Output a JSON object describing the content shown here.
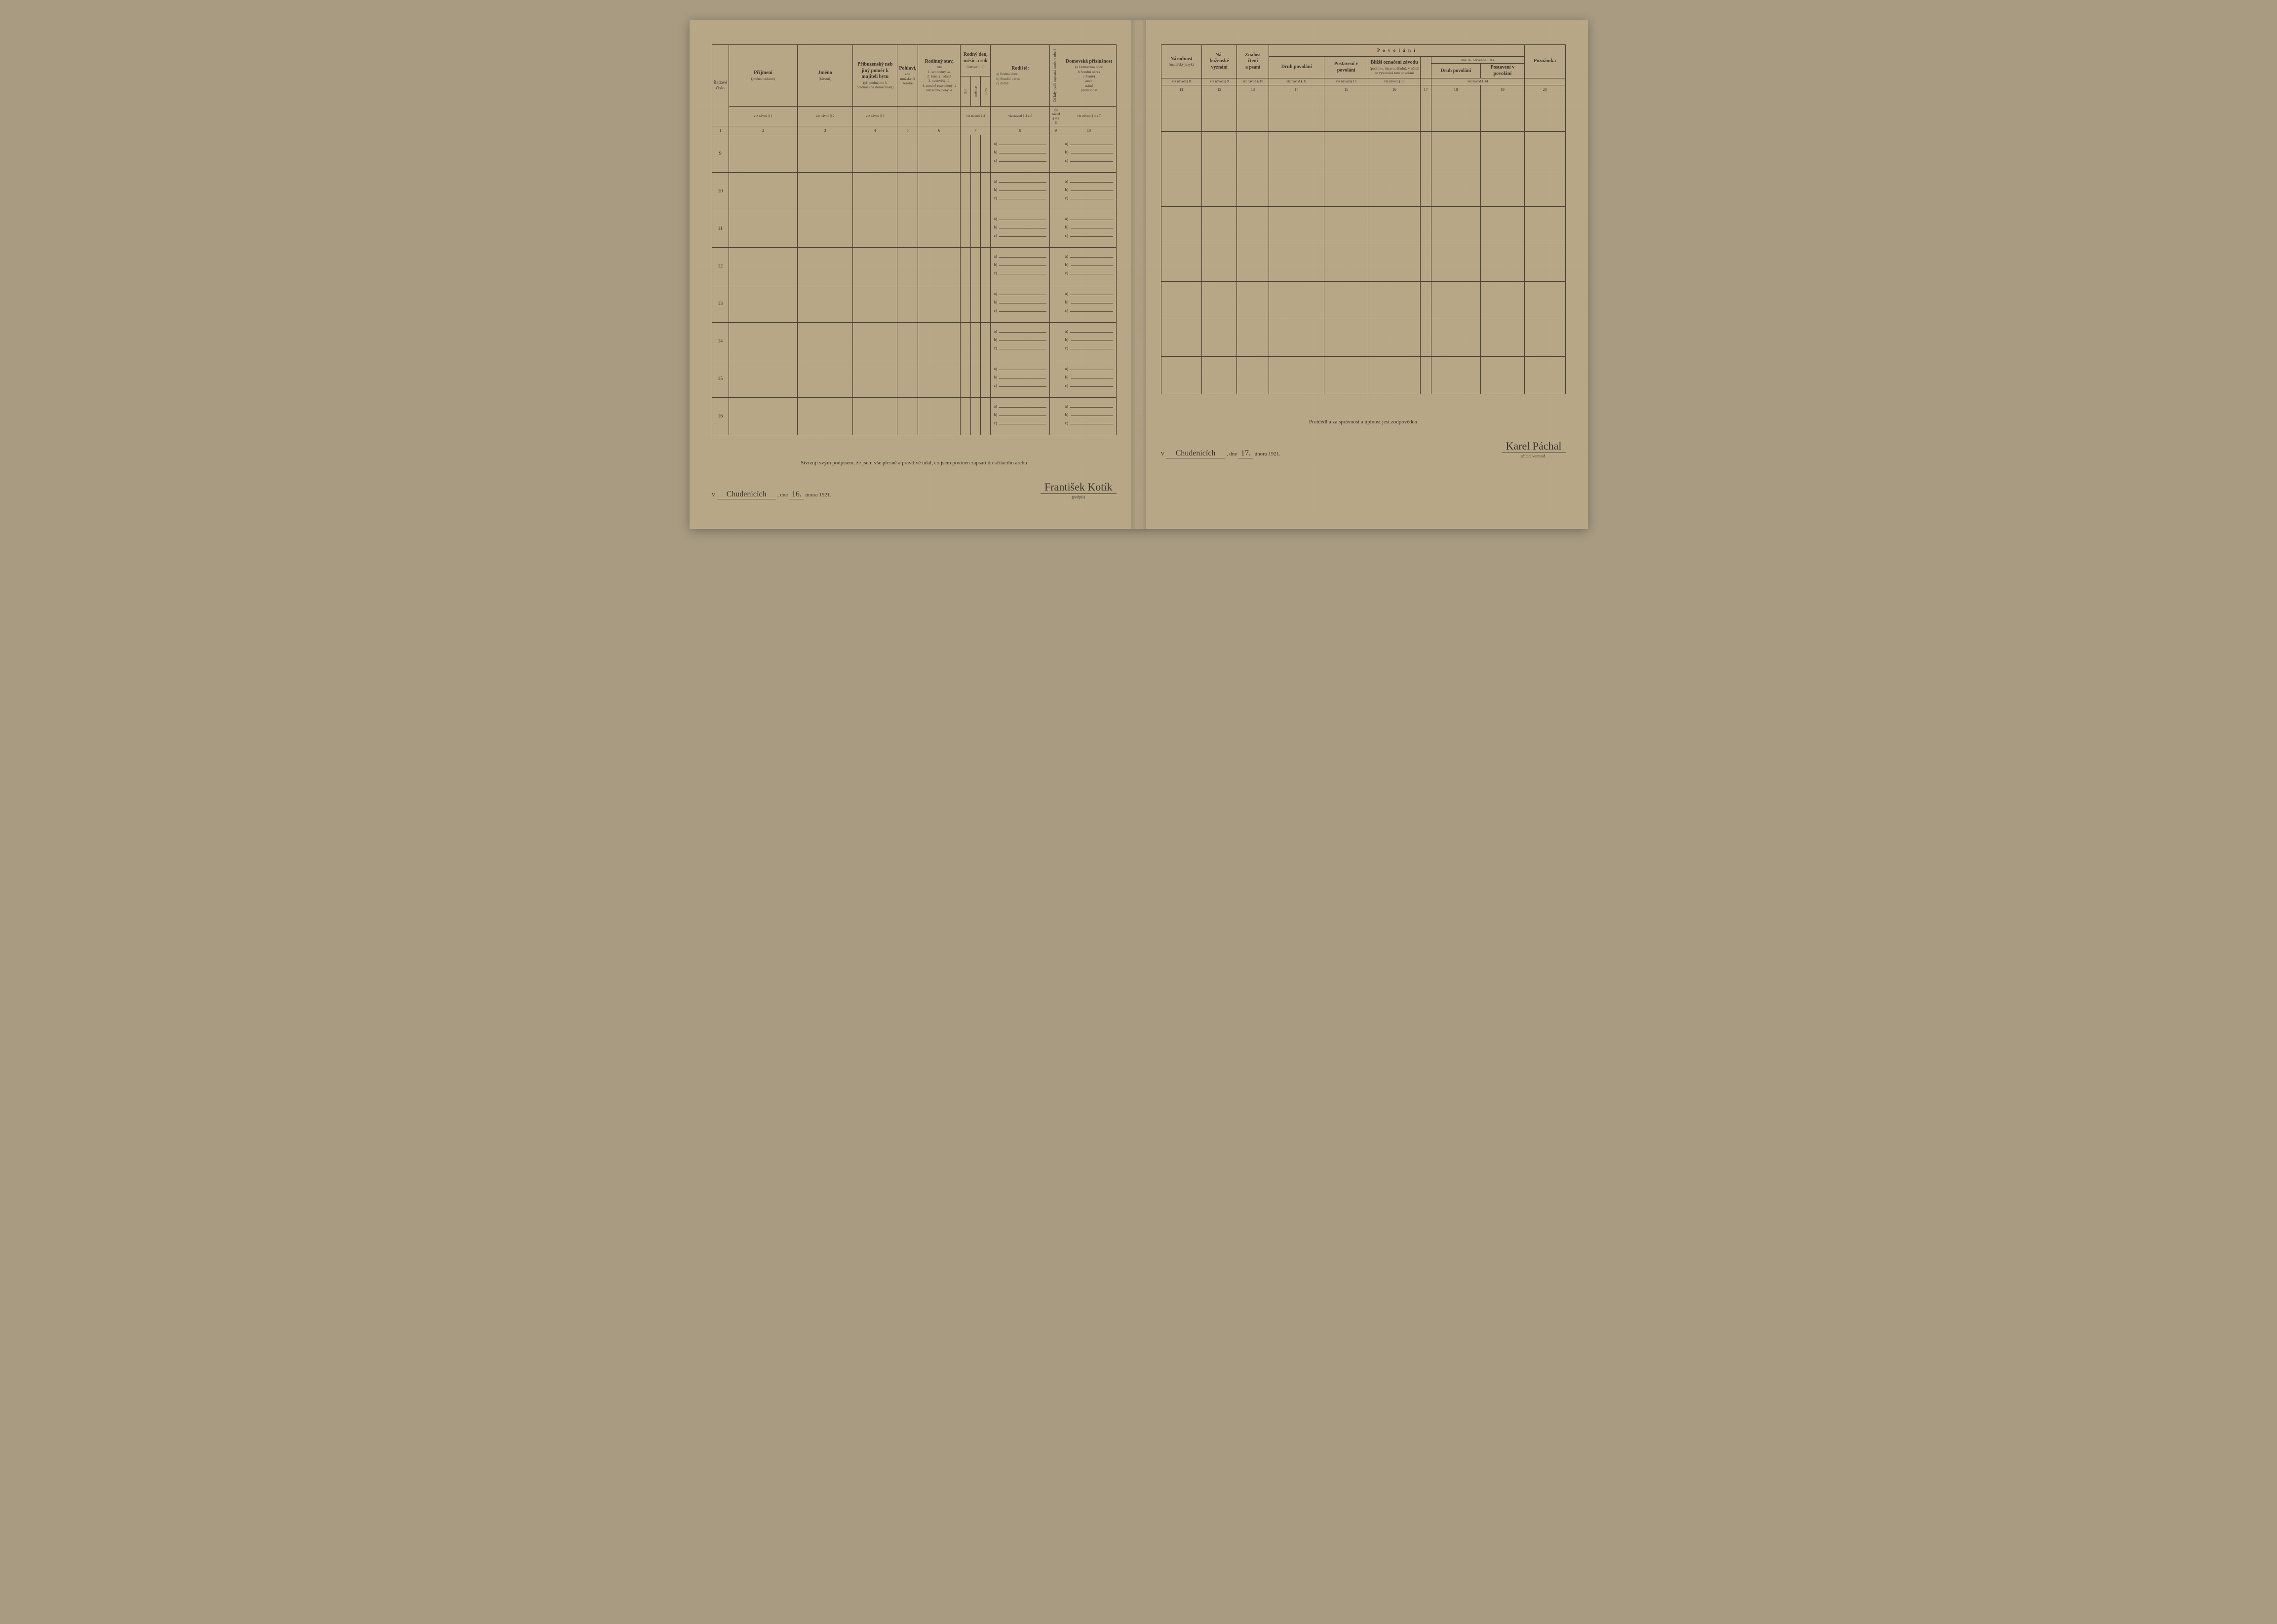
{
  "left": {
    "headers": {
      "c1": "Řadové číslo",
      "c2": {
        "title": "Příjmení",
        "sub": "(jméno rodinné)",
        "ref": "viz návod § 1"
      },
      "c3": {
        "title": "Jméno",
        "sub": "(křestní)",
        "ref": "viz návod § 2"
      },
      "c4": {
        "title": "Příbuzenský neb jiný poměr k majiteli bytu",
        "sub": "(při podnájmu k přednostovi domácnosti)",
        "ref": "viz návod § 3"
      },
      "c5": {
        "title": "Pohlaví,",
        "sub": "zda mužské či ženské"
      },
      "c6": {
        "title": "Rodinný stav,",
        "sub": "zda\n1. svobodný -á,\n2. ženatý, vdaná\n3. ovdovělý -á,\n4. soudně rozvedený -á neb rozloučený -á"
      },
      "c7": {
        "title": "Rodný den, měsíc a rok",
        "sub": "(narozen -a)",
        "sub2a": "dne",
        "sub2b": "měsíce",
        "sub2c": "roku",
        "ref": "viz návod § 4"
      },
      "c8": {
        "title": "Rodiště:",
        "sub": "a) Rodná obec\nb) Soudní okres\nc) Země",
        "ref": "viz návod § 4 a 5"
      },
      "c9": {
        "title": "Od kdy bydlí zapsaná osoba v obci?",
        "ref": "viz návod § 4 a 6"
      },
      "c10": {
        "title": "Domovská příslušnost",
        "sub": "(a Domovská obec\nb Soudní okres\nc Země)\naneb\nstátní\npříslušnost",
        "ref": "viz návod § 4 a 7"
      }
    },
    "colnums": [
      "1",
      "2",
      "3",
      "4",
      "5",
      "6",
      "7",
      "8",
      "9",
      "10"
    ],
    "rows": [
      "9",
      "10",
      "11",
      "12",
      "13",
      "14",
      "15",
      "16"
    ],
    "abc": [
      "a)",
      "b)",
      "c)"
    ],
    "footer": {
      "decl": "Stvrzuji svým podpisem, že jsem vše přesně a pravdivě udal, co jsem povinen zapsati do sčítacího archu",
      "v": "V",
      "place": "Chudenicích",
      "dne": ", dne",
      "day": "16.",
      "month_year": "února 1921.",
      "sig": "František Kotík",
      "sig_sub": "(podpis)"
    }
  },
  "right": {
    "headers": {
      "c11": {
        "title": "Národnost",
        "sub": "(mateřský jazyk)",
        "ref": "viz návod § 8"
      },
      "c12": {
        "title": "Ná-\nboženské\nvyznání",
        "ref": "viz návod § 9"
      },
      "c13": {
        "title": "Znalost\nčtení\na psaní",
        "ref": "viz návod § 10"
      },
      "group": "P o v o l á n í",
      "c14": {
        "title": "Druh povolání",
        "ref": "viz návod § 11"
      },
      "c15": {
        "title": "Postavení v povolání",
        "ref": "viz návod § 12"
      },
      "c16": {
        "title": "Bližší označení závodu",
        "sub": "(podniku, ústavu, úřadu), v němž se vykonává toto povolání",
        "ref": "viz návod § 13"
      },
      "c17": {
        "title": ""
      },
      "sub_date": "dne 16. července 1914",
      "c18": {
        "title": "Druh povolání"
      },
      "c19": {
        "title": "Postavení v povolání"
      },
      "ref14": "viz návod § 14",
      "c20": {
        "title": "Poznámka"
      }
    },
    "colnums": [
      "11",
      "12",
      "13",
      "14",
      "15",
      "16",
      "17",
      "18",
      "19",
      "20"
    ],
    "rows": 8,
    "footer": {
      "decl": "Prohlédl a za správnost a úplnost jest zodpověden",
      "v": "V",
      "place": "Chudenicích",
      "dne": ", dne",
      "day": "17.",
      "month_year": "února 1921.",
      "sig": "Karel Páchal",
      "sig_sub": "sčítací komisař."
    }
  },
  "style": {
    "paper_color": "#b8a888",
    "ink_color": "#3a3228",
    "rule_color": "#4a4030"
  }
}
